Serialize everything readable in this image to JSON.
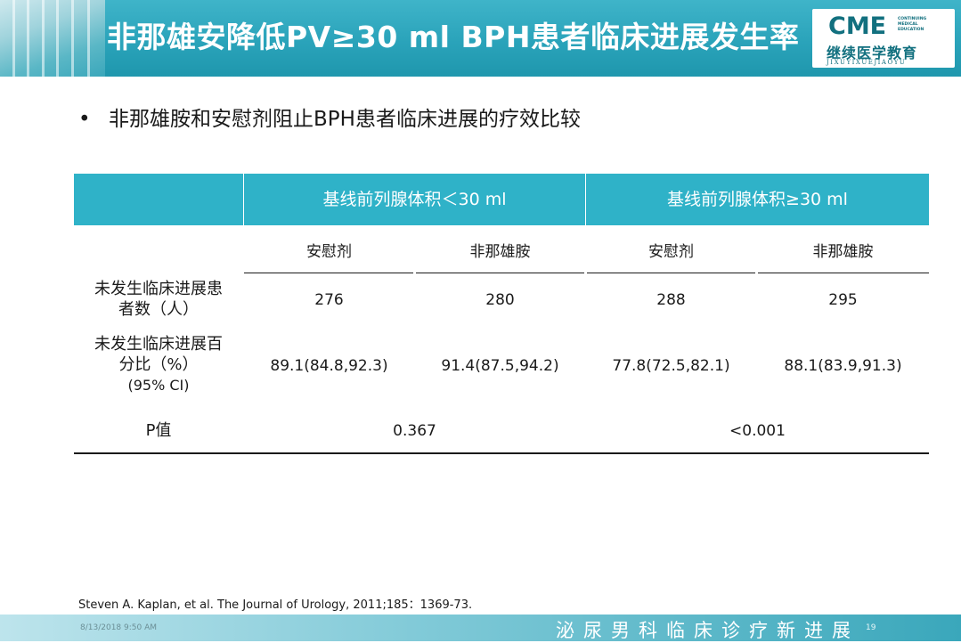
{
  "header": {
    "title": "非那雄安降低PV≥30 ml BPH患者临床进展发生率",
    "logo": {
      "cme": "CME",
      "sub_lines": [
        "CONTINUING",
        "MEDICAL",
        "EDUCATION"
      ],
      "cn": "继续医学教育",
      "pinyin": "JIXUYIXUEJIAOYU"
    }
  },
  "bullet": {
    "symbol": "•",
    "text": "非那雄胺和安慰剂阻止BPH患者临床进展的疗效比较"
  },
  "table": {
    "group_headers": [
      "基线前列腺体积＜30 ml",
      "基线前列腺体积≥30 ml"
    ],
    "sub_headers": [
      "安慰剂",
      "非那雄胺",
      "安慰剂",
      "非那雄胺"
    ],
    "rows": [
      {
        "label_lines": [
          "未发生临床进展患",
          "者数（人）"
        ],
        "values": [
          "276",
          "280",
          "288",
          "295"
        ]
      },
      {
        "label_lines": [
          "未发生临床进展百",
          "分比（%）",
          "(95% CI)"
        ],
        "values": [
          "89.1(84.8,92.3)",
          "91.4(87.5,94.2)",
          "77.8(72.5,82.1)",
          "88.1(83.9,91.3)"
        ]
      }
    ],
    "p_row": {
      "label": "P值",
      "values": [
        "0.367",
        "<0.001"
      ]
    }
  },
  "reference": "Steven  A. Kaplan, et al. The Journal of Urology, 2011;185：1369-73.",
  "footer": {
    "date": "8/13/2018 9:50 AM",
    "page": "19",
    "title": "泌尿男科临床诊疗新进展"
  },
  "colors": {
    "accent": "#2fb2c8",
    "header": "#2aa3ba",
    "logo_text": "#12707f"
  }
}
